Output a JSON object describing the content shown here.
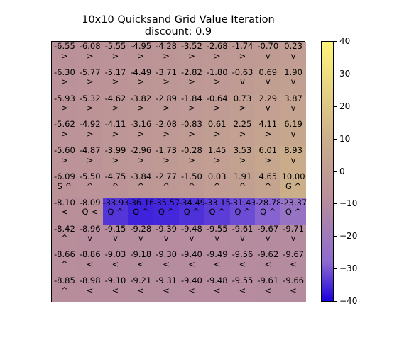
{
  "chart_data": {
    "type": "heatmap",
    "title": "10x10 Quicksand Grid Value Iteration",
    "subtitle": "discount: 0.9",
    "rows": 10,
    "cols": 10,
    "values": [
      [
        -6.55,
        -6.08,
        -5.55,
        -4.95,
        -4.28,
        -3.52,
        -2.68,
        -1.74,
        -0.7,
        0.23
      ],
      [
        -6.3,
        -5.77,
        -5.17,
        -4.49,
        -3.71,
        -2.82,
        -1.8,
        -0.63,
        0.69,
        1.9
      ],
      [
        -5.93,
        -5.32,
        -4.62,
        -3.82,
        -2.89,
        -1.84,
        -0.64,
        0.73,
        2.29,
        3.87
      ],
      [
        -5.62,
        -4.92,
        -4.11,
        -3.16,
        -2.08,
        -0.83,
        0.61,
        2.25,
        4.11,
        6.19
      ],
      [
        -5.6,
        -4.87,
        -3.99,
        -2.96,
        -1.73,
        -0.28,
        1.45,
        3.53,
        6.01,
        8.93
      ],
      [
        -6.09,
        -5.5,
        -4.75,
        -3.84,
        -2.77,
        -1.5,
        0.03,
        1.91,
        4.65,
        10.0
      ],
      [
        -8.1,
        -8.09,
        -33.93,
        -36.16,
        -35.57,
        -34.49,
        -33.15,
        -31.43,
        -28.78,
        -23.37
      ],
      [
        -8.42,
        -8.96,
        -9.15,
        -9.28,
        -9.39,
        -9.48,
        -9.55,
        -9.61,
        -9.67,
        -9.71
      ],
      [
        -8.66,
        -8.86,
        -9.03,
        -9.18,
        -9.3,
        -9.4,
        -9.49,
        -9.56,
        -9.62,
        -9.67
      ],
      [
        -8.85,
        -8.98,
        -9.1,
        -9.21,
        -9.31,
        -9.4,
        -9.48,
        -9.55,
        -9.61,
        -9.66
      ]
    ],
    "labels": [
      [
        ">",
        ">",
        ">",
        ">",
        ">",
        ">",
        ">",
        ">",
        "v",
        "v"
      ],
      [
        ">",
        ">",
        ">",
        ">",
        ">",
        ">",
        ">",
        "v",
        "v",
        "v"
      ],
      [
        ">",
        ">",
        ">",
        ">",
        ">",
        ">",
        ">",
        ">",
        "v",
        "v"
      ],
      [
        ">",
        ">",
        ">",
        ">",
        ">",
        ">",
        ">",
        ">",
        ">",
        "v"
      ],
      [
        ">",
        ">",
        ">",
        ">",
        ">",
        ">",
        ">",
        ">",
        ">",
        "v"
      ],
      [
        "S ^",
        "^",
        "^",
        "^",
        "^",
        "^",
        "^",
        "^",
        "^",
        "G ^"
      ],
      [
        "<",
        "Q <",
        "Q ^",
        "Q ^",
        "Q ^",
        "Q ^",
        "Q ^",
        "Q ^",
        "Q ^",
        "Q ^"
      ],
      [
        "^",
        "v",
        "v",
        "v",
        "v",
        "v",
        "v",
        "v",
        "v",
        "v"
      ],
      [
        "^",
        "<",
        "<",
        "<",
        "<",
        "<",
        "<",
        "<",
        "<",
        "<"
      ],
      [
        "^",
        "<",
        "<",
        "<",
        "<",
        "<",
        "<",
        "<",
        "<",
        "<"
      ]
    ],
    "colorbar": {
      "min": -40,
      "max": 40,
      "ticks": [
        "40",
        "30",
        "20",
        "10",
        "0",
        "−10",
        "−20",
        "−30",
        "−40"
      ]
    },
    "colormap": [
      "#1a00e0",
      "#8d6ad0",
      "#b98f9a",
      "#c8aa8c",
      "#fff57a"
    ]
  }
}
